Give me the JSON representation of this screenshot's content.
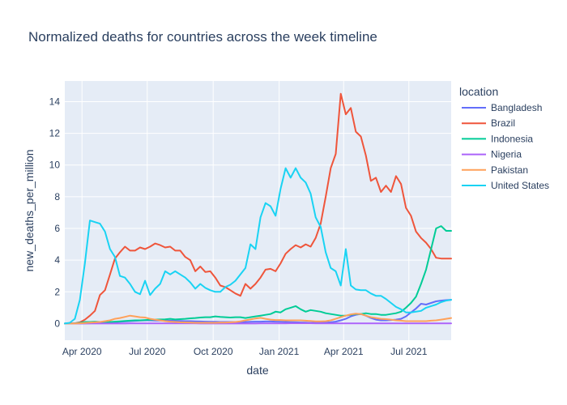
{
  "chart_data": {
    "type": "line",
    "title": "Normalized deaths for countries across the week timeline",
    "xlabel": "date",
    "ylabel": "new_deaths_per_million",
    "x_ticks": [
      "Apr 2020",
      "Jul 2020",
      "Oct 2020",
      "Jan 2021",
      "Apr 2021",
      "Jul 2021"
    ],
    "x_tick_dates": [
      "2020-04-01",
      "2020-07-01",
      "2020-10-01",
      "2021-01-01",
      "2021-04-01",
      "2021-07-01"
    ],
    "xlim": [
      "2020-03-08",
      "2021-08-29"
    ],
    "y_ticks": [
      0,
      2,
      4,
      6,
      8,
      10,
      12,
      14
    ],
    "ylim": [
      -1.05,
      15.3
    ],
    "grid": true,
    "legend_title": "location",
    "legend_position": "right",
    "x": [
      "2020-03-08",
      "2020-03-15",
      "2020-03-22",
      "2020-03-29",
      "2020-04-05",
      "2020-04-12",
      "2020-04-19",
      "2020-04-26",
      "2020-05-03",
      "2020-05-10",
      "2020-05-17",
      "2020-05-24",
      "2020-05-31",
      "2020-06-07",
      "2020-06-14",
      "2020-06-21",
      "2020-06-28",
      "2020-07-05",
      "2020-07-12",
      "2020-07-19",
      "2020-07-26",
      "2020-08-02",
      "2020-08-09",
      "2020-08-16",
      "2020-08-23",
      "2020-08-30",
      "2020-09-06",
      "2020-09-13",
      "2020-09-20",
      "2020-09-27",
      "2020-10-04",
      "2020-10-11",
      "2020-10-18",
      "2020-10-25",
      "2020-11-01",
      "2020-11-08",
      "2020-11-15",
      "2020-11-22",
      "2020-11-29",
      "2020-12-06",
      "2020-12-13",
      "2020-12-20",
      "2020-12-27",
      "2021-01-03",
      "2021-01-10",
      "2021-01-17",
      "2021-01-24",
      "2021-01-31",
      "2021-02-07",
      "2021-02-14",
      "2021-02-21",
      "2021-02-28",
      "2021-03-07",
      "2021-03-14",
      "2021-03-21",
      "2021-03-28",
      "2021-04-04",
      "2021-04-11",
      "2021-04-18",
      "2021-04-25",
      "2021-05-02",
      "2021-05-09",
      "2021-05-16",
      "2021-05-23",
      "2021-05-30",
      "2021-06-06",
      "2021-06-13",
      "2021-06-20",
      "2021-06-27",
      "2021-07-04",
      "2021-07-11",
      "2021-07-18",
      "2021-07-25",
      "2021-08-01",
      "2021-08-08",
      "2021-08-15",
      "2021-08-22",
      "2021-08-29"
    ],
    "series": [
      {
        "name": "Bangladesh",
        "color": "#636efa",
        "values": [
          0,
          0,
          0,
          0,
          0.01,
          0.02,
          0.03,
          0.04,
          0.05,
          0.07,
          0.09,
          0.11,
          0.13,
          0.15,
          0.17,
          0.19,
          0.2,
          0.2,
          0.19,
          0.19,
          0.18,
          0.18,
          0.17,
          0.16,
          0.15,
          0.15,
          0.14,
          0.13,
          0.12,
          0.11,
          0.11,
          0.1,
          0.1,
          0.1,
          0.1,
          0.1,
          0.1,
          0.11,
          0.12,
          0.12,
          0.13,
          0.13,
          0.12,
          0.11,
          0.1,
          0.09,
          0.08,
          0.07,
          0.06,
          0.05,
          0.05,
          0.05,
          0.06,
          0.08,
          0.12,
          0.2,
          0.3,
          0.45,
          0.55,
          0.6,
          0.5,
          0.35,
          0.25,
          0.2,
          0.2,
          0.22,
          0.25,
          0.3,
          0.45,
          0.7,
          0.95,
          1.25,
          1.2,
          1.3,
          1.4,
          1.45,
          1.48,
          1.5
        ]
      },
      {
        "name": "Brazil",
        "color": "#EF553B",
        "values": [
          0,
          0,
          0.02,
          0.08,
          0.25,
          0.5,
          0.8,
          1.8,
          2.1,
          3.1,
          4.1,
          4.5,
          4.85,
          4.6,
          4.6,
          4.8,
          4.7,
          4.85,
          5.05,
          4.95,
          4.8,
          4.85,
          4.6,
          4.6,
          4.2,
          4.0,
          3.3,
          3.6,
          3.25,
          3.3,
          2.9,
          2.4,
          2.3,
          2.1,
          1.9,
          1.75,
          2.5,
          2.2,
          2.5,
          2.9,
          3.4,
          3.45,
          3.3,
          3.8,
          4.4,
          4.7,
          4.95,
          4.8,
          5.0,
          4.85,
          5.4,
          6.3,
          8.0,
          9.8,
          10.7,
          14.5,
          13.2,
          13.6,
          12.1,
          11.8,
          10.6,
          9.0,
          9.2,
          8.3,
          8.7,
          8.3,
          9.3,
          8.8,
          7.3,
          6.8,
          5.8,
          5.4,
          5.1,
          4.7,
          4.15,
          4.1,
          4.1,
          4.1
        ]
      },
      {
        "name": "Indonesia",
        "color": "#00cc96",
        "values": [
          0,
          0,
          0.02,
          0.05,
          0.1,
          0.1,
          0.12,
          0.1,
          0.08,
          0.1,
          0.12,
          0.14,
          0.16,
          0.18,
          0.2,
          0.2,
          0.22,
          0.24,
          0.25,
          0.26,
          0.27,
          0.3,
          0.26,
          0.28,
          0.3,
          0.33,
          0.35,
          0.38,
          0.4,
          0.4,
          0.45,
          0.42,
          0.4,
          0.38,
          0.4,
          0.4,
          0.35,
          0.4,
          0.45,
          0.5,
          0.55,
          0.6,
          0.75,
          0.7,
          0.9,
          1.0,
          1.1,
          0.9,
          0.75,
          0.85,
          0.8,
          0.75,
          0.65,
          0.6,
          0.55,
          0.5,
          0.5,
          0.55,
          0.6,
          0.6,
          0.65,
          0.6,
          0.6,
          0.55,
          0.55,
          0.6,
          0.65,
          0.75,
          1.0,
          1.3,
          1.7,
          2.5,
          3.4,
          4.7,
          6.0,
          6.15,
          5.85,
          5.85
        ]
      },
      {
        "name": "Nigeria",
        "color": "#ab63fa",
        "values": [
          0,
          0,
          0,
          0,
          0,
          0,
          0,
          0,
          0,
          0,
          0,
          0,
          0,
          0.01,
          0.01,
          0.01,
          0.01,
          0.01,
          0.01,
          0.01,
          0.01,
          0.01,
          0.01,
          0.01,
          0.01,
          0.01,
          0.01,
          0,
          0,
          0,
          0,
          0,
          0,
          0,
          0,
          0,
          0,
          0,
          0,
          0.01,
          0.01,
          0.01,
          0.01,
          0.01,
          0.01,
          0.02,
          0.02,
          0.02,
          0.02,
          0.02,
          0.01,
          0.01,
          0.01,
          0.01,
          0.01,
          0.01,
          0.01,
          0.01,
          0.01,
          0.01,
          0.01,
          0.01,
          0.01,
          0.01,
          0.01,
          0.01,
          0.01,
          0.01,
          0.01,
          0.01,
          0.01,
          0.01,
          0.01,
          0.01,
          0.01,
          0.01,
          0.01,
          0.01
        ]
      },
      {
        "name": "Pakistan",
        "color": "#FFA15A",
        "values": [
          0,
          0,
          0,
          0.02,
          0.04,
          0.06,
          0.08,
          0.1,
          0.15,
          0.2,
          0.3,
          0.35,
          0.42,
          0.5,
          0.45,
          0.4,
          0.38,
          0.3,
          0.25,
          0.2,
          0.15,
          0.12,
          0.1,
          0.08,
          0.07,
          0.06,
          0.05,
          0.05,
          0.05,
          0.05,
          0.05,
          0.06,
          0.06,
          0.08,
          0.1,
          0.14,
          0.2,
          0.26,
          0.32,
          0.36,
          0.3,
          0.25,
          0.22,
          0.22,
          0.2,
          0.2,
          0.2,
          0.2,
          0.18,
          0.16,
          0.14,
          0.14,
          0.15,
          0.2,
          0.3,
          0.4,
          0.5,
          0.58,
          0.62,
          0.6,
          0.5,
          0.4,
          0.35,
          0.3,
          0.28,
          0.25,
          0.2,
          0.18,
          0.15,
          0.15,
          0.15,
          0.15,
          0.15,
          0.18,
          0.2,
          0.25,
          0.3,
          0.35
        ]
      },
      {
        "name": "United States",
        "color": "#19d3f3",
        "values": [
          0,
          0.05,
          0.3,
          1.5,
          3.8,
          6.5,
          6.4,
          6.3,
          5.8,
          4.7,
          4.2,
          3.0,
          2.9,
          2.5,
          2.0,
          1.85,
          2.7,
          1.8,
          2.2,
          2.5,
          3.3,
          3.1,
          3.3,
          3.1,
          2.9,
          2.6,
          2.2,
          2.5,
          2.25,
          2.1,
          2.0,
          2.0,
          2.3,
          2.45,
          2.7,
          3.1,
          3.5,
          5.0,
          4.7,
          6.7,
          7.6,
          7.4,
          6.8,
          8.5,
          9.8,
          9.2,
          9.8,
          9.2,
          8.9,
          8.2,
          6.7,
          6.1,
          4.5,
          3.5,
          3.3,
          2.4,
          4.7,
          2.4,
          2.15,
          2.1,
          2.1,
          1.9,
          1.75,
          1.75,
          1.55,
          1.3,
          1.05,
          0.9,
          0.7,
          0.7,
          0.75,
          0.8,
          1.0,
          1.1,
          1.2,
          1.35,
          1.45,
          1.5
        ]
      }
    ]
  }
}
